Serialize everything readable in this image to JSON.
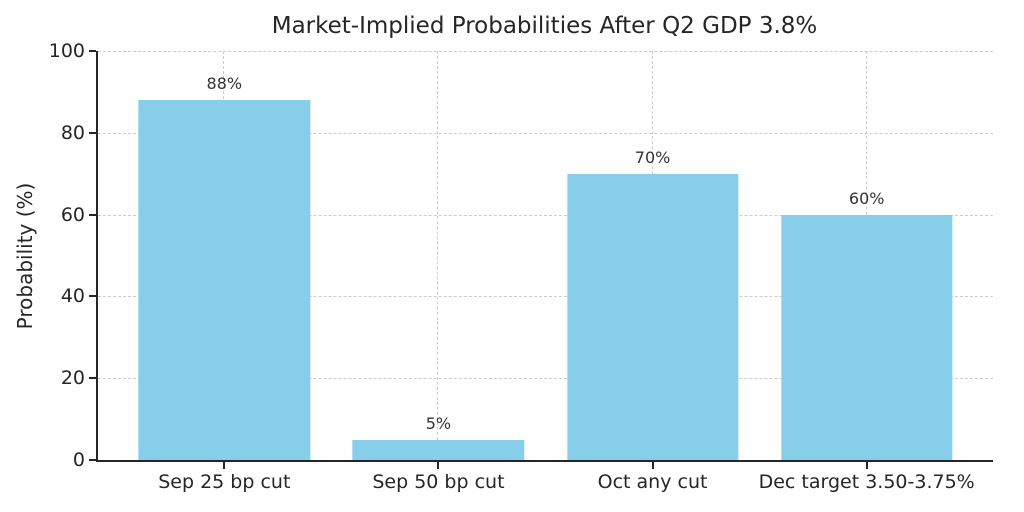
{
  "chart_data": {
    "type": "bar",
    "title": "Market-Implied Probabilities After Q2 GDP 3.8%",
    "ylabel": "Probability (%)",
    "xlabel": "",
    "categories": [
      "Sep 25 bp cut",
      "Sep 50 bp cut",
      "Oct any cut",
      "Dec target 3.50-3.75%"
    ],
    "values": [
      88,
      5,
      70,
      60
    ],
    "value_labels": [
      "88%",
      "5%",
      "70%",
      "60%"
    ],
    "ylim": [
      0,
      100
    ],
    "yticks": [
      0,
      20,
      40,
      60,
      80,
      100
    ],
    "legend": "none",
    "grid": "dashed-both-axes-behind-bars",
    "colors": {
      "bar": "#87CEEB",
      "text": "#262626",
      "value_label_text": "#333333",
      "grid": "#cccccc",
      "background": "#ffffff"
    }
  }
}
